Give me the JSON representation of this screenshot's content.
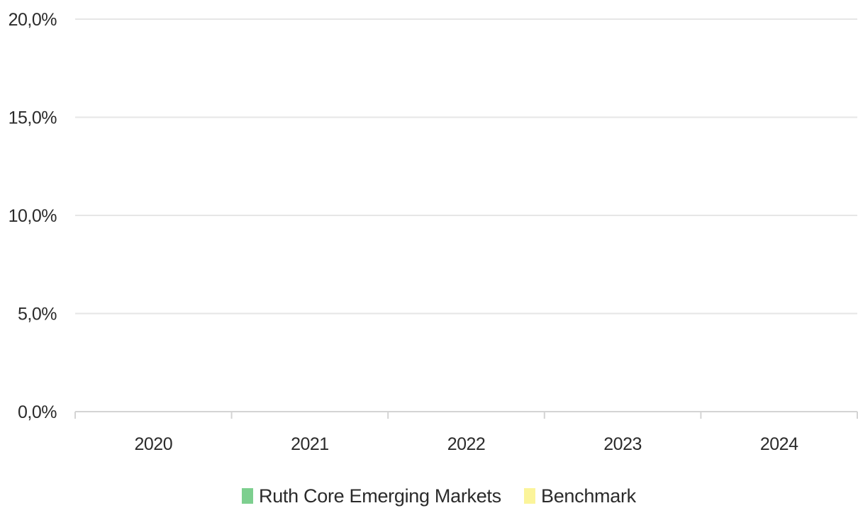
{
  "chart_data": {
    "type": "bar",
    "categories": [
      "2020",
      "2021",
      "2022",
      "2023",
      "2024"
    ],
    "series": [
      {
        "name": "Ruth Core Emerging Markets",
        "values": [
          null,
          null,
          null,
          null,
          null
        ],
        "color": "#7dcf8f"
      },
      {
        "name": "Benchmark",
        "values": [
          null,
          null,
          null,
          null,
          null
        ],
        "color": "#fbf49a"
      }
    ],
    "ylim": [
      0,
      20
    ],
    "yticks": [
      0,
      5,
      10,
      15,
      20
    ],
    "ytick_labels": [
      "0,0%",
      "5,0%",
      "10,0%",
      "15,0%",
      "20,0%"
    ],
    "grid": true,
    "legend": "bottom-center",
    "colors": {
      "grid": "#e6e6e6",
      "axis": "#d4d4d4",
      "text": "#2b2b2b"
    }
  }
}
